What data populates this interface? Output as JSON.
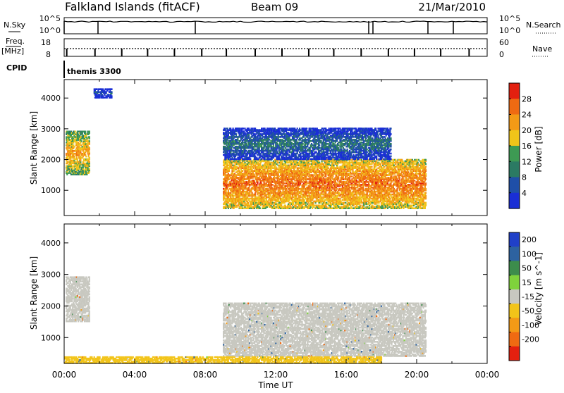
{
  "header": {
    "site": "Falkland Islands (fitACF)",
    "beam": "Beam 09",
    "date": "21/Mar/2010"
  },
  "status_panels": {
    "nsky_label": "N.Sky",
    "nsky_ticks": [
      "10^5",
      "10^0"
    ],
    "nsearch_label": "N.Search",
    "nsearch_ticks": [
      "10^5",
      "10^0"
    ],
    "freq_label": "Freq.",
    "freq_unit": "[MHz]",
    "freq_ticks": [
      "18",
      "8"
    ],
    "nave_label": "Nave",
    "nave_ticks": [
      "60",
      "0"
    ],
    "cpid_label": "CPID",
    "cpid_value": "themis 3300"
  },
  "colors": {
    "power_scale": [
      "#1a2ed6",
      "#1f4fa8",
      "#2b7a63",
      "#3d9a53",
      "#f0c419",
      "#f39a16",
      "#ef6a12",
      "#e3200f"
    ],
    "velocity_scale": [
      "#2040c8",
      "#2d62a0",
      "#3c8c4c",
      "#7fd23c",
      "#c8c8c0",
      "#f2c419",
      "#f39a16",
      "#ef6a12",
      "#e3200f"
    ],
    "ground_scatter": "#c8c8c0"
  },
  "chart_data": [
    {
      "type": "heatmap",
      "panel": "power",
      "xlabel": "",
      "ylabel": "Slant Range [km]",
      "xlim": [
        "00:00",
        "24:00"
      ],
      "ylim": [
        180,
        4600
      ],
      "y_ticks": [
        1000,
        2000,
        3000,
        4000
      ],
      "colorbar": {
        "label": "Power [dB]",
        "ticks": [
          4,
          8,
          12,
          16,
          20,
          24,
          28
        ],
        "range": [
          0,
          32
        ]
      },
      "regions": [
        {
          "t_start": "00:05",
          "t_end": "01:25",
          "r_min": 1500,
          "r_max": 2900,
          "value": 22,
          "description": "near-range echoes"
        },
        {
          "t_start": "01:40",
          "t_end": "02:40",
          "r_min": 4000,
          "r_max": 4300,
          "value": 6
        },
        {
          "t_start": "09:00",
          "t_end": "20:30",
          "r_min": 400,
          "r_max": 2000,
          "value": 26,
          "description": "main band"
        },
        {
          "t_start": "09:00",
          "t_end": "18:30",
          "r_min": 2000,
          "r_max": 3000,
          "value": 10
        }
      ]
    },
    {
      "type": "heatmap",
      "panel": "velocity",
      "xlabel": "Time UT",
      "ylabel": "Slant Range [km]",
      "xlim": [
        "00:00",
        "24:00"
      ],
      "x_ticks": [
        "00:00",
        "04:00",
        "08:00",
        "12:00",
        "16:00",
        "20:00",
        "00:00"
      ],
      "ylim": [
        180,
        4600
      ],
      "y_ticks": [
        1000,
        2000,
        3000,
        4000
      ],
      "colorbar": {
        "label": "Velocity [m s^-1]",
        "ticks": [
          200,
          100,
          50,
          15,
          -15,
          -50,
          -100,
          -200
        ],
        "range": [
          -250,
          250
        ]
      },
      "regions": [
        {
          "t_start": "00:05",
          "t_end": "01:25",
          "r_min": 1500,
          "r_max": 2900,
          "value": 0,
          "description": "ground scatter"
        },
        {
          "t_start": "09:00",
          "t_end": "20:30",
          "r_min": 400,
          "r_max": 2100,
          "value": 0,
          "description": "ground scatter"
        },
        {
          "t_start": "00:00",
          "t_end": "18:00",
          "r_min": 180,
          "r_max": 400,
          "value": -30
        }
      ]
    }
  ]
}
